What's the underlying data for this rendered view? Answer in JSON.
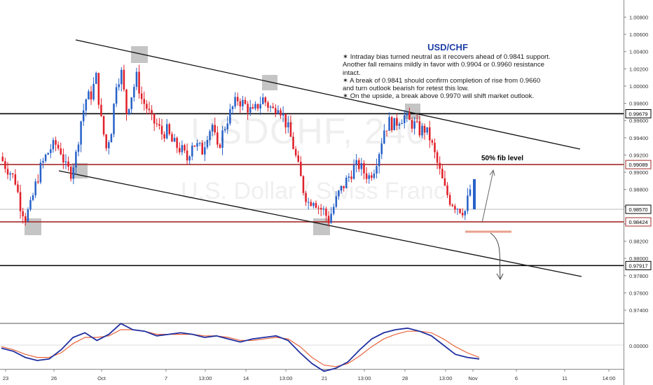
{
  "watermark": {
    "symbol": "USDCHF, 240",
    "name": "U.S. Dollar / Swiss Franc"
  },
  "annotation": {
    "title": "USD/CHF",
    "lines": [
      "✶ Intraday bias turned neutral as it recovers ahead of 0.9841 support. Another fall remains mildly in favor with 0.9904 or 0.9960 resistance intact.",
      "✶ A break of 0.9841 should confirm completion of rise from 0.9660 and turn outlook bearish for retest this low.",
      "✶ On the upside, a break above 0.9970 will shift market outlook."
    ]
  },
  "fib_label": "50% fib level",
  "colors": {
    "bull": "#2862c9",
    "bear": "#e0202a",
    "level_red": "#a52a2a",
    "level_black": "#000000",
    "highlight": "#9e9e9e",
    "osc_main": "#1f2fa0",
    "osc_signal": "#e8643c"
  },
  "chart_data": {
    "type": "candlestick",
    "symbol": "USD/CHF",
    "timeframe": "240",
    "ylim": [
      0.9725,
      1.0095
    ],
    "y_ticks": [
      "1.00800",
      "1.00600",
      "1.00400",
      "1.00200",
      "1.00000",
      "0.99800",
      "0.99600",
      "0.99400",
      "0.99200",
      "0.99000",
      "0.98800",
      "0.98600",
      "0.98400",
      "0.98200",
      "0.98000",
      "0.97800",
      "0.97600",
      "0.97400"
    ],
    "x_ticks": [
      "23",
      "26",
      "Oct",
      "7",
      "13:00",
      "14",
      "13:00",
      "21",
      "13:00",
      "28",
      "13:00",
      "Nov",
      "6",
      "11",
      "14:00"
    ],
    "price_levels": [
      {
        "label": "0.99679",
        "value": 0.99679,
        "color": "black"
      },
      {
        "label": "0.99089",
        "value": 0.99089,
        "color": "red"
      },
      {
        "label": "0.98570",
        "value": 0.9857,
        "color": "gray"
      },
      {
        "label": "0.98424",
        "value": 0.98424,
        "color": "red"
      },
      {
        "label": "0.97917",
        "value": 0.97917,
        "color": "black"
      }
    ],
    "channel_lines": [
      {
        "from": [
          "Sep 24",
          1.0049
        ],
        "to": [
          "Nov 10",
          0.9925
        ]
      },
      {
        "from": [
          "Sep 25",
          0.9903
        ],
        "to": [
          "Nov 11",
          0.9786
        ]
      }
    ],
    "close_path": [
      0.9918,
      0.9908,
      0.99,
      0.989,
      0.9862,
      0.9848,
      0.986,
      0.9885,
      0.9905,
      0.9918,
      0.9928,
      0.9932,
      0.9925,
      0.9905,
      0.99,
      0.992,
      0.996,
      0.9985,
      0.999,
      1.001,
      0.996,
      0.9928,
      0.995,
      1.0005,
      1.0015,
      0.997,
      0.999,
      1.001,
      0.9985,
      0.9975,
      0.996,
      0.9955,
      0.9945,
      0.9948,
      0.9935,
      0.993,
      0.9925,
      0.9915,
      0.9935,
      0.993,
      0.9925,
      0.9945,
      0.9955,
      0.9925,
      0.9945,
      0.9962,
      0.9975,
      0.9985,
      0.998,
      0.9975,
      0.9968,
      0.9978,
      0.9985,
      0.9978,
      0.9972,
      0.998,
      0.9965,
      0.995,
      0.993,
      0.9905,
      0.988,
      0.9865,
      0.987,
      0.986,
      0.9855,
      0.9845,
      0.986,
      0.9875,
      0.9885,
      0.9895,
      0.9905,
      0.9908,
      0.99,
      0.9895,
      0.9905,
      0.9925,
      0.995,
      0.9958,
      0.9955,
      0.9962,
      0.9965,
      0.9958,
      0.9955,
      0.9948,
      0.995,
      0.994,
      0.992,
      0.99,
      0.988,
      0.9868,
      0.9862,
      0.9858,
      0.9855,
      0.988
    ],
    "highlight_zones": [
      "Sep 24 low",
      "Oct 2 high",
      "Sep 27 low",
      "Oct 16 high",
      "Oct 21 low",
      "Oct 29 high"
    ],
    "projection": {
      "up_target": 0.9904,
      "support_zone": 0.98424,
      "down_target": 0.9791
    },
    "oscillator": {
      "zero_label": "0.00000",
      "main": [
        -0.2,
        -0.4,
        -0.8,
        -1.0,
        -0.9,
        -0.3,
        0.5,
        0.8,
        0.3,
        0.7,
        1.4,
        1.0,
        0.9,
        0.6,
        0.7,
        0.8,
        0.7,
        0.5,
        0.6,
        0.4,
        0.2,
        0.4,
        0.5,
        0.6,
        0.3,
        -0.5,
        -1.2,
        -1.7,
        -1.5,
        -1.1,
        -0.3,
        0.4,
        0.8,
        1.0,
        1.1,
        0.9,
        0.6,
        0.0,
        -0.6,
        -0.8,
        -0.9
      ],
      "signal": [
        -0.1,
        -0.3,
        -0.6,
        -0.8,
        -0.8,
        -0.5,
        0.1,
        0.5,
        0.5,
        0.6,
        1.0,
        1.0,
        0.9,
        0.7,
        0.7,
        0.7,
        0.7,
        0.6,
        0.6,
        0.5,
        0.3,
        0.3,
        0.4,
        0.5,
        0.4,
        -0.1,
        -0.8,
        -1.3,
        -1.4,
        -1.2,
        -0.7,
        -0.1,
        0.4,
        0.7,
        0.9,
        0.9,
        0.8,
        0.4,
        -0.1,
        -0.5,
        -0.8
      ]
    }
  }
}
